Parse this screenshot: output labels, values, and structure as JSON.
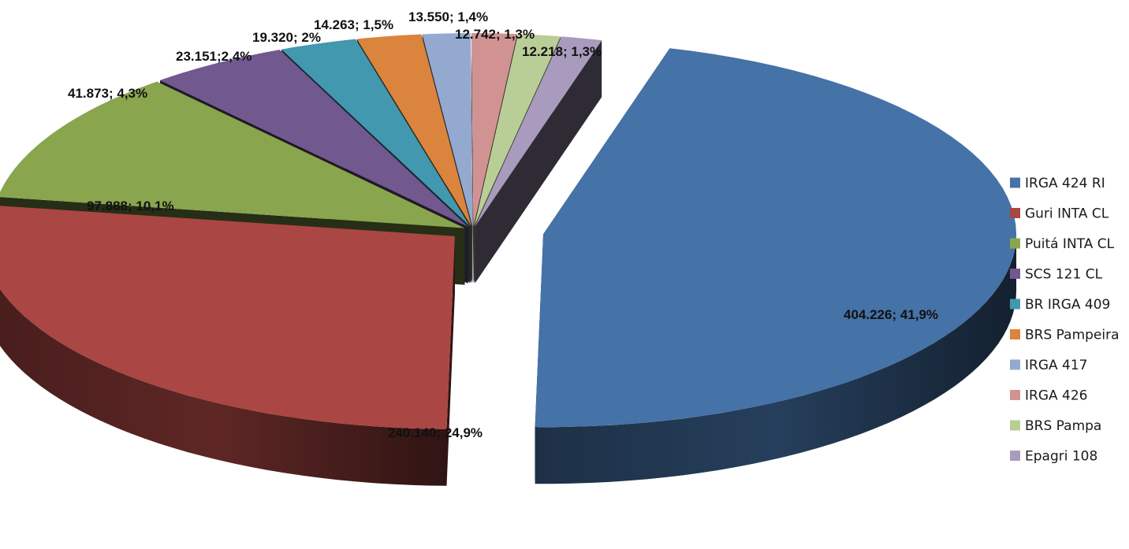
{
  "chart_data": {
    "type": "pie",
    "variant": "3d-exploded",
    "title": "",
    "legend_position": "right",
    "series": [
      {
        "name": "IRGA 424 RI",
        "value": 404226,
        "percent": 41.9,
        "label": "404.226; 41,9%",
        "color": "#4572A7"
      },
      {
        "name": "Guri INTA CL",
        "value": 240140,
        "percent": 24.9,
        "label": "240.140; 24,9%",
        "color": "#AA4643"
      },
      {
        "name": "Puitá INTA CL",
        "value": 97888,
        "percent": 10.1,
        "label": "97.888; 10,1%",
        "color": "#89A54E"
      },
      {
        "name": "SCS 121 CL",
        "value": 41873,
        "percent": 4.3,
        "label": "41.873; 4,3%",
        "color": "#71588F"
      },
      {
        "name": "BR IRGA 409",
        "value": 23151,
        "percent": 2.4,
        "label": "23.151;2,4%",
        "color": "#4198AF"
      },
      {
        "name": "BRS Pampeira",
        "value": 19320,
        "percent": 2.0,
        "label": "19.320; 2%",
        "color": "#DB843D"
      },
      {
        "name": "IRGA 417",
        "value": 14263,
        "percent": 1.5,
        "label": "14.263; 1,5%",
        "color": "#93A9CF"
      },
      {
        "name": "IRGA 426",
        "value": 13550,
        "percent": 1.4,
        "label": "13.550; 1,4%",
        "color": "#D19392"
      },
      {
        "name": "BRS Pampa",
        "value": 12742,
        "percent": 1.3,
        "label": "12.742; 1,3%",
        "color": "#B9CD96"
      },
      {
        "name": "Epagri 108",
        "value": 12218,
        "percent": 1.3,
        "label": "12.218; 1,3%",
        "color": "#A99BBD"
      }
    ]
  }
}
